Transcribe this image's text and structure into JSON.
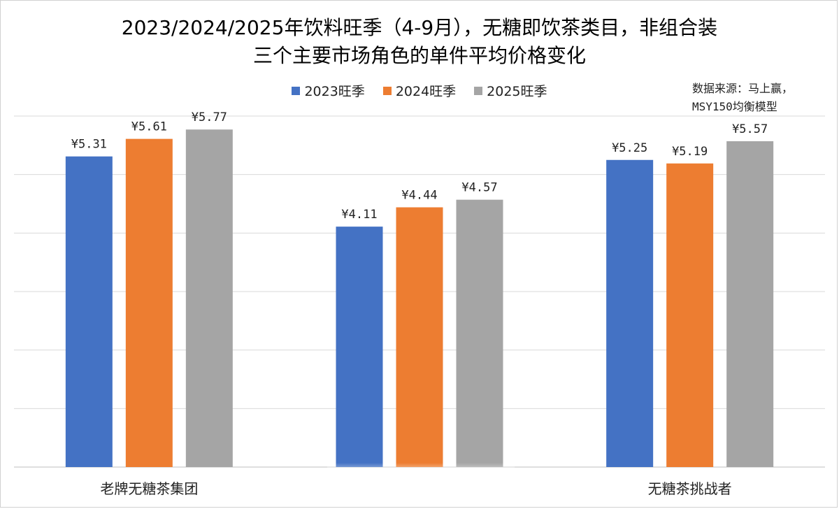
{
  "chart_data": {
    "type": "bar",
    "title_line1": "2023/2024/2025年饮料旺季（4-9月），无糖即饮茶类目，非组合装",
    "title_line2": "三个主要市场角色的单件平均价格变化",
    "categories": [
      "老牌无糖茶集团",
      "",
      "无糖茶挑战者"
    ],
    "series": [
      {
        "name": "2023旺季",
        "color": "#4472C4",
        "values": [
          5.31,
          4.11,
          5.25
        ],
        "labels": [
          "¥5.31",
          "¥4.11",
          "¥5.25"
        ]
      },
      {
        "name": "2024旺季",
        "color": "#ED7D31",
        "values": [
          5.61,
          4.44,
          5.19
        ],
        "labels": [
          "¥5.61",
          "¥4.44",
          "¥5.19"
        ]
      },
      {
        "name": "2025旺季",
        "color": "#A5A5A5",
        "values": [
          5.77,
          4.57,
          5.57
        ],
        "labels": [
          "¥5.77",
          "¥4.57",
          "¥5.57"
        ]
      }
    ],
    "ylim": [
      0,
      6
    ],
    "grid": true,
    "legend": "top",
    "source_line1": "数据来源：马上赢，",
    "source_line2": "MSY150均衡模型"
  }
}
